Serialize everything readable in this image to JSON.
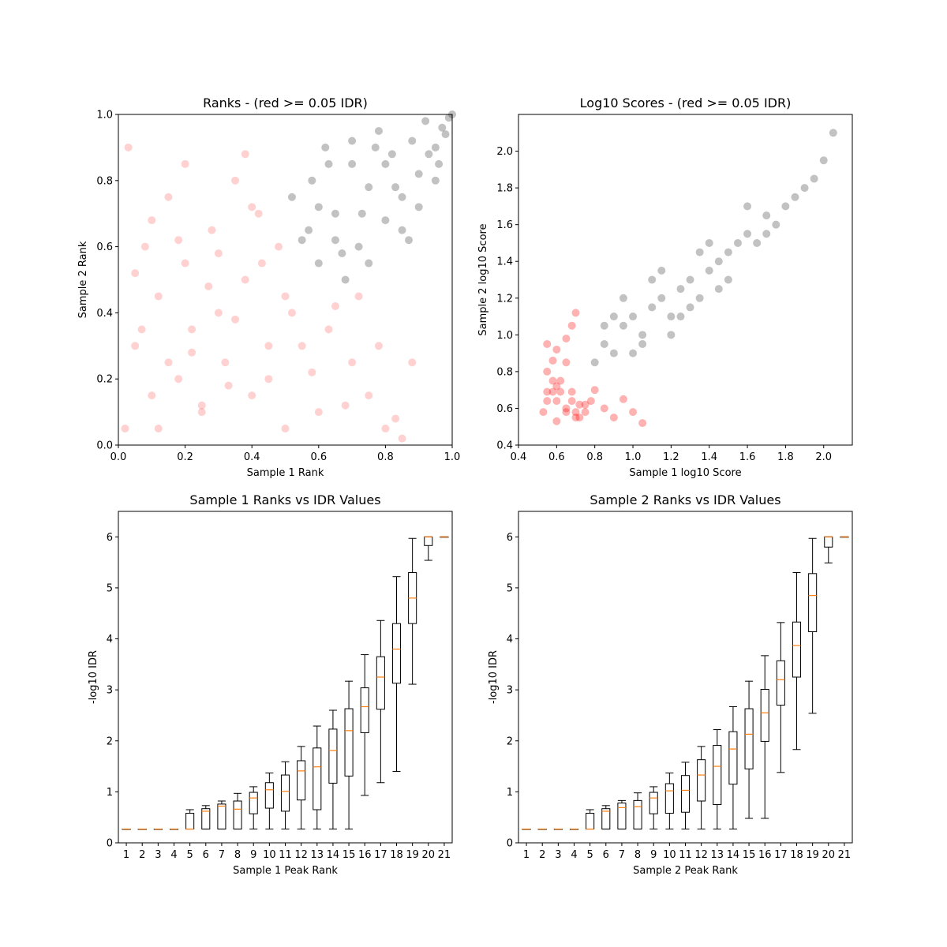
{
  "chart_data": [
    {
      "type": "scatter",
      "title": "Ranks - (red >= 0.05 IDR)",
      "xlabel": "Sample 1 Rank",
      "ylabel": "Sample 2 Rank",
      "xlim": [
        0,
        1
      ],
      "ylim": [
        0,
        1
      ],
      "xticks": [
        "0.0",
        "0.2",
        "0.4",
        "0.6",
        "0.8",
        "1.0"
      ],
      "yticks": [
        "0.0",
        "0.2",
        "0.4",
        "0.6",
        "0.8",
        "1.0"
      ],
      "grid": false,
      "series": [
        {
          "color": "#ff0000",
          "alpha": 0.06,
          "description_colors": "red",
          "x": [
            0.02,
            0.05,
            0.08,
            0.1,
            0.12,
            0.15,
            0.18,
            0.2,
            0.22,
            0.25,
            0.28,
            0.3,
            0.32,
            0.35,
            0.38,
            0.4,
            0.42,
            0.45,
            0.48,
            0.5,
            0.05,
            0.1,
            0.15,
            0.2,
            0.25,
            0.3,
            0.35,
            0.4,
            0.45,
            0.5,
            0.55,
            0.6,
            0.65,
            0.7,
            0.75,
            0.8,
            0.85,
            0.03,
            0.07,
            0.12,
            0.18,
            0.22,
            0.27,
            0.33,
            0.38,
            0.43,
            0.52,
            0.58,
            0.63,
            0.68,
            0.72,
            0.78,
            0.83,
            0.88
          ],
          "y": [
            0.05,
            0.3,
            0.6,
            0.15,
            0.45,
            0.75,
            0.2,
            0.55,
            0.35,
            0.1,
            0.65,
            0.4,
            0.25,
            0.8,
            0.5,
            0.15,
            0.7,
            0.3,
            0.6,
            0.45,
            0.52,
            0.68,
            0.25,
            0.85,
            0.12,
            0.58,
            0.38,
            0.72,
            0.2,
            0.05,
            0.3,
            0.1,
            0.42,
            0.25,
            0.15,
            0.05,
            0.02,
            0.9,
            0.35,
            0.05,
            0.62,
            0.28,
            0.48,
            0.18,
            0.88,
            0.55,
            0.4,
            0.22,
            0.35,
            0.12,
            0.45,
            0.3,
            0.08,
            0.25
          ]
        },
        {
          "color": "#000000",
          "alpha": 0.08,
          "description_colors": "black",
          "x": [
            0.55,
            0.58,
            0.6,
            0.62,
            0.65,
            0.68,
            0.7,
            0.72,
            0.75,
            0.78,
            0.8,
            0.82,
            0.85,
            0.88,
            0.9,
            0.92,
            0.95,
            0.97,
            0.99,
            1.0,
            0.6,
            0.65,
            0.7,
            0.75,
            0.8,
            0.85,
            0.9,
            0.95,
            0.98,
            0.52,
            0.57,
            0.63,
            0.67,
            0.73,
            0.77,
            0.83,
            0.87,
            0.93,
            0.96
          ],
          "y": [
            0.62,
            0.8,
            0.55,
            0.9,
            0.7,
            0.5,
            0.85,
            0.6,
            0.78,
            0.95,
            0.68,
            0.88,
            0.75,
            0.92,
            0.82,
            0.98,
            0.9,
            0.96,
            0.99,
            1.0,
            0.72,
            0.62,
            0.92,
            0.55,
            0.85,
            0.65,
            0.72,
            0.8,
            0.94,
            0.75,
            0.65,
            0.85,
            0.58,
            0.7,
            0.9,
            0.78,
            0.62,
            0.88,
            0.85
          ]
        }
      ]
    },
    {
      "type": "scatter",
      "title": "Log10 Scores - (red >= 0.05 IDR)",
      "xlabel": "Sample 1 log10 Score",
      "ylabel": "Sample 2 log10 Score",
      "xlim": [
        0.4,
        2.15
      ],
      "ylim": [
        0.4,
        2.2
      ],
      "xticks": [
        "0.4",
        "0.6",
        "0.8",
        "1.0",
        "1.2",
        "1.4",
        "1.6",
        "1.8",
        "2.0"
      ],
      "yticks": [
        "0.4",
        "0.6",
        "0.8",
        "1.0",
        "1.2",
        "1.4",
        "1.6",
        "1.8",
        "2.0"
      ],
      "grid": false,
      "series": [
        {
          "color": "#ff0000",
          "alpha": 0.1,
          "x": [
            0.53,
            0.55,
            0.58,
            0.6,
            0.62,
            0.65,
            0.68,
            0.7,
            0.72,
            0.75,
            0.78,
            0.8,
            0.85,
            0.9,
            0.95,
            1.0,
            1.05,
            0.55,
            0.58,
            0.6,
            0.65,
            0.68,
            0.7,
            0.55,
            0.6,
            0.65,
            0.7,
            0.75,
            0.58,
            0.62,
            0.68,
            0.72,
            0.55,
            0.6,
            0.65
          ],
          "y": [
            0.58,
            0.64,
            0.69,
            0.53,
            0.75,
            0.6,
            0.69,
            0.55,
            0.62,
            0.58,
            0.64,
            0.7,
            0.6,
            0.55,
            0.65,
            0.58,
            0.52,
            0.8,
            0.86,
            0.92,
            0.98,
            1.05,
            1.12,
            0.69,
            0.64,
            0.58,
            0.58,
            0.62,
            0.75,
            0.69,
            0.64,
            0.55,
            0.95,
            0.72,
            0.85
          ]
        },
        {
          "color": "#000000",
          "alpha": 0.08,
          "x": [
            0.8,
            0.85,
            0.9,
            0.95,
            1.0,
            1.05,
            1.1,
            1.15,
            1.2,
            1.25,
            1.3,
            1.35,
            1.4,
            1.45,
            1.5,
            1.55,
            1.6,
            1.65,
            1.7,
            1.75,
            1.8,
            1.85,
            1.9,
            1.95,
            2.0,
            2.05,
            0.9,
            1.0,
            1.1,
            1.2,
            1.3,
            1.4,
            1.5,
            1.6,
            1.7,
            0.85,
            0.95,
            1.05,
            1.15,
            1.25,
            1.35,
            1.45
          ],
          "y": [
            0.85,
            0.95,
            0.9,
            1.05,
            1.1,
            1.0,
            1.15,
            1.2,
            1.1,
            1.25,
            1.3,
            1.2,
            1.35,
            1.4,
            1.45,
            1.5,
            1.55,
            1.5,
            1.65,
            1.6,
            1.7,
            1.75,
            1.8,
            1.85,
            1.95,
            2.1,
            1.1,
            0.9,
            1.3,
            1.0,
            1.15,
            1.5,
            1.3,
            1.7,
            1.55,
            1.05,
            1.2,
            0.95,
            1.35,
            1.1,
            1.45,
            1.25
          ]
        }
      ]
    },
    {
      "type": "box",
      "title": "Sample 1 Ranks vs IDR Values",
      "xlabel": "Sample 1 Peak Rank",
      "ylabel": "-log10 IDR",
      "xlim": [
        0,
        21
      ],
      "ylim": [
        0,
        6.5
      ],
      "xticks": [
        "1",
        "2",
        "3",
        "4",
        "5",
        "6",
        "7",
        "8",
        "9",
        "10",
        "11",
        "12",
        "13",
        "14",
        "15",
        "16",
        "17",
        "18",
        "19",
        "20",
        "21"
      ],
      "yticks": [
        "0",
        "1",
        "2",
        "3",
        "4",
        "5",
        "6"
      ],
      "grid": false,
      "boxes": [
        {
          "x": 1,
          "whislo": 0.27,
          "q1": 0.27,
          "med": 0.27,
          "q3": 0.27,
          "whishi": 0.27
        },
        {
          "x": 2,
          "whislo": 0.27,
          "q1": 0.27,
          "med": 0.27,
          "q3": 0.27,
          "whishi": 0.27
        },
        {
          "x": 3,
          "whislo": 0.27,
          "q1": 0.27,
          "med": 0.27,
          "q3": 0.27,
          "whishi": 0.27
        },
        {
          "x": 4,
          "whislo": 0.27,
          "q1": 0.27,
          "med": 0.27,
          "q3": 0.27,
          "whishi": 0.27
        },
        {
          "x": 5,
          "whislo": 0.27,
          "q1": 0.27,
          "med": 0.27,
          "q3": 0.58,
          "whishi": 0.65
        },
        {
          "x": 6,
          "whislo": 0.27,
          "q1": 0.27,
          "med": 0.62,
          "q3": 0.67,
          "whishi": 0.73
        },
        {
          "x": 7,
          "whislo": 0.27,
          "q1": 0.27,
          "med": 0.72,
          "q3": 0.76,
          "whishi": 0.82
        },
        {
          "x": 8,
          "whislo": 0.27,
          "q1": 0.27,
          "med": 0.66,
          "q3": 0.82,
          "whishi": 0.97
        },
        {
          "x": 9,
          "whislo": 0.27,
          "q1": 0.57,
          "med": 0.88,
          "q3": 0.99,
          "whishi": 1.1
        },
        {
          "x": 10,
          "whislo": 0.27,
          "q1": 0.68,
          "med": 1.04,
          "q3": 1.18,
          "whishi": 1.37
        },
        {
          "x": 11,
          "whislo": 0.27,
          "q1": 0.62,
          "med": 1.01,
          "q3": 1.33,
          "whishi": 1.59
        },
        {
          "x": 12,
          "whislo": 0.27,
          "q1": 0.84,
          "med": 1.41,
          "q3": 1.61,
          "whishi": 1.89
        },
        {
          "x": 13,
          "whislo": 0.27,
          "q1": 0.65,
          "med": 1.49,
          "q3": 1.86,
          "whishi": 2.29
        },
        {
          "x": 14,
          "whislo": 0.27,
          "q1": 1.17,
          "med": 1.81,
          "q3": 2.23,
          "whishi": 2.6
        },
        {
          "x": 15,
          "whislo": 0.27,
          "q1": 1.31,
          "med": 2.2,
          "q3": 2.63,
          "whishi": 3.17
        },
        {
          "x": 16,
          "whislo": 0.93,
          "q1": 2.16,
          "med": 2.67,
          "q3": 3.04,
          "whishi": 3.69
        },
        {
          "x": 17,
          "whislo": 1.18,
          "q1": 2.62,
          "med": 3.25,
          "q3": 3.65,
          "whishi": 4.36
        },
        {
          "x": 18,
          "whislo": 1.4,
          "q1": 3.13,
          "med": 3.8,
          "q3": 4.3,
          "whishi": 5.22
        },
        {
          "x": 19,
          "whislo": 3.11,
          "q1": 4.3,
          "med": 4.8,
          "q3": 5.3,
          "whishi": 5.97
        },
        {
          "x": 20,
          "whislo": 5.54,
          "q1": 5.83,
          "med": 6.0,
          "q3": 6.0,
          "whishi": 6.0
        },
        {
          "x": 21,
          "whislo": 6.0,
          "q1": 6.0,
          "med": 6.0,
          "q3": 6.0,
          "whishi": 6.0
        }
      ]
    },
    {
      "type": "box",
      "title": "Sample 2 Ranks vs IDR Values",
      "xlabel": "Sample 2 Peak Rank",
      "ylabel": "-log10 IDR",
      "xlim": [
        0,
        21
      ],
      "ylim": [
        0,
        6.5
      ],
      "xticks": [
        "1",
        "2",
        "3",
        "4",
        "5",
        "6",
        "7",
        "8",
        "9",
        "10",
        "11",
        "12",
        "13",
        "14",
        "15",
        "16",
        "17",
        "18",
        "19",
        "20",
        "21"
      ],
      "yticks": [
        "0",
        "1",
        "2",
        "3",
        "4",
        "5",
        "6"
      ],
      "grid": false,
      "boxes": [
        {
          "x": 1,
          "whislo": 0.27,
          "q1": 0.27,
          "med": 0.27,
          "q3": 0.27,
          "whishi": 0.27
        },
        {
          "x": 2,
          "whislo": 0.27,
          "q1": 0.27,
          "med": 0.27,
          "q3": 0.27,
          "whishi": 0.27
        },
        {
          "x": 3,
          "whislo": 0.27,
          "q1": 0.27,
          "med": 0.27,
          "q3": 0.27,
          "whishi": 0.27
        },
        {
          "x": 4,
          "whislo": 0.27,
          "q1": 0.27,
          "med": 0.27,
          "q3": 0.27,
          "whishi": 0.27
        },
        {
          "x": 5,
          "whislo": 0.27,
          "q1": 0.27,
          "med": 0.27,
          "q3": 0.58,
          "whishi": 0.65
        },
        {
          "x": 6,
          "whislo": 0.27,
          "q1": 0.27,
          "med": 0.62,
          "q3": 0.67,
          "whishi": 0.73
        },
        {
          "x": 7,
          "whislo": 0.27,
          "q1": 0.27,
          "med": 0.69,
          "q3": 0.78,
          "whishi": 0.83
        },
        {
          "x": 8,
          "whislo": 0.27,
          "q1": 0.27,
          "med": 0.71,
          "q3": 0.83,
          "whishi": 0.98
        },
        {
          "x": 9,
          "whislo": 0.27,
          "q1": 0.57,
          "med": 0.88,
          "q3": 0.99,
          "whishi": 1.1
        },
        {
          "x": 10,
          "whislo": 0.27,
          "q1": 0.58,
          "med": 1.02,
          "q3": 1.16,
          "whishi": 1.37
        },
        {
          "x": 11,
          "whislo": 0.27,
          "q1": 0.6,
          "med": 1.03,
          "q3": 1.32,
          "whishi": 1.58
        },
        {
          "x": 12,
          "whislo": 0.27,
          "q1": 0.82,
          "med": 1.33,
          "q3": 1.63,
          "whishi": 1.89
        },
        {
          "x": 13,
          "whislo": 0.27,
          "q1": 0.75,
          "med": 1.5,
          "q3": 1.91,
          "whishi": 2.22
        },
        {
          "x": 14,
          "whislo": 0.27,
          "q1": 1.15,
          "med": 1.84,
          "q3": 2.18,
          "whishi": 2.67
        },
        {
          "x": 15,
          "whislo": 0.48,
          "q1": 1.45,
          "med": 2.13,
          "q3": 2.63,
          "whishi": 3.17
        },
        {
          "x": 16,
          "whislo": 0.48,
          "q1": 1.99,
          "med": 2.55,
          "q3": 3.01,
          "whishi": 3.67
        },
        {
          "x": 17,
          "whislo": 1.38,
          "q1": 2.7,
          "med": 3.2,
          "q3": 3.57,
          "whishi": 4.32
        },
        {
          "x": 18,
          "whislo": 1.83,
          "q1": 3.25,
          "med": 3.87,
          "q3": 4.33,
          "whishi": 5.3
        },
        {
          "x": 19,
          "whislo": 2.54,
          "q1": 4.14,
          "med": 4.85,
          "q3": 5.28,
          "whishi": 5.97
        },
        {
          "x": 20,
          "whislo": 5.49,
          "q1": 5.8,
          "med": 6.0,
          "q3": 6.0,
          "whishi": 6.0
        },
        {
          "x": 21,
          "whislo": 6.0,
          "q1": 6.0,
          "med": 6.0,
          "q3": 6.0,
          "whishi": 6.0
        }
      ]
    }
  ]
}
